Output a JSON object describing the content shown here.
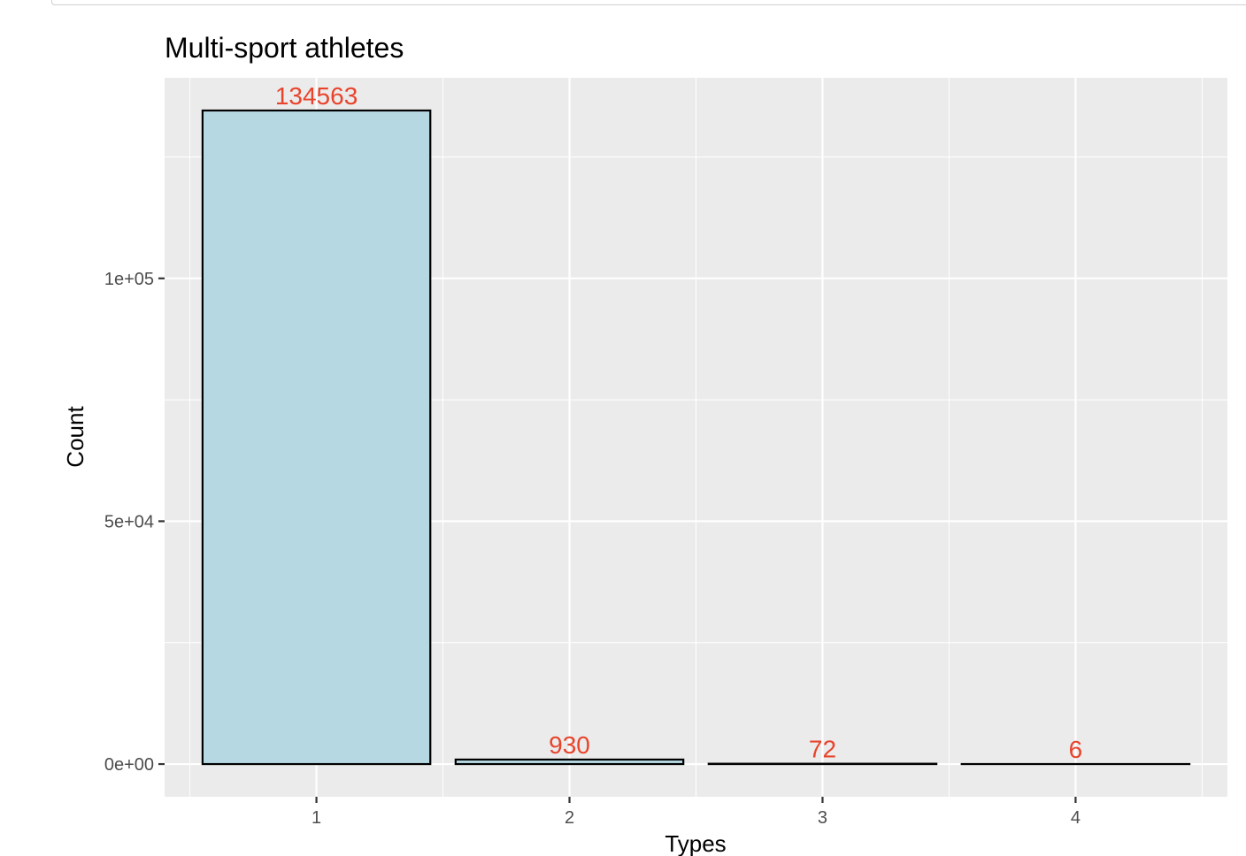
{
  "chart_data": {
    "type": "bar",
    "title": "Multi-sport athletes",
    "xlabel": "Types",
    "ylabel": "Count",
    "categories": [
      "1",
      "2",
      "3",
      "4"
    ],
    "values": [
      134563,
      930,
      72,
      6
    ],
    "data_labels": [
      "134563",
      "930",
      "72",
      "6"
    ],
    "y_ticks": [
      {
        "value": 0,
        "label": "0e+00"
      },
      {
        "value": 50000,
        "label": "5e+04"
      },
      {
        "value": 100000,
        "label": "1e+05"
      }
    ],
    "ylim": [
      -6728,
      141291
    ],
    "grid": true,
    "legend": "none"
  },
  "colors": {
    "panel_background": "#ebebeb",
    "grid": "#ffffff",
    "bar_fill": "#b6d8e3",
    "bar_outline": "#000000",
    "data_label": "#e8442c"
  }
}
